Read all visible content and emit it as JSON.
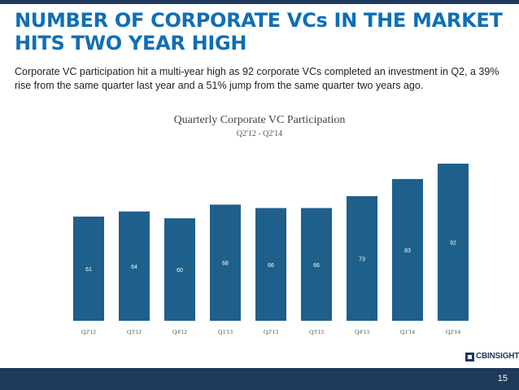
{
  "header": {
    "title": "NUMBER OF CORPORATE VCs IN THE MARKET HITS TWO YEAR HIGH",
    "intro": "Corporate VC participation hit a multi-year high as 92 corporate VCs completed an investment in Q2, a 39% rise from the same quarter last year and a 51% jump from the same quarter two years ago."
  },
  "chart_data": {
    "type": "bar",
    "title": "Quarterly Corporate VC Participation",
    "subtitle": "Q2'12 - Q2'14",
    "categories": [
      "Q2'12",
      "Q3'12",
      "Q4'12",
      "Q1'13",
      "Q2'13",
      "Q3'13",
      "Q4'13",
      "Q1'14",
      "Q2'14"
    ],
    "values": [
      61,
      64,
      60,
      68,
      66,
      66,
      73,
      83,
      92
    ],
    "bar_color": "#1f5f8b",
    "label_color": "#ffffff",
    "ylim": [
      0,
      92
    ],
    "grid": false,
    "legend": "none"
  },
  "branding": {
    "logo_text": "CBINSIGHTS"
  },
  "footer": {
    "page_number": "15",
    "color": "#1f3a5c"
  },
  "accent_color": "#0f6fb6"
}
